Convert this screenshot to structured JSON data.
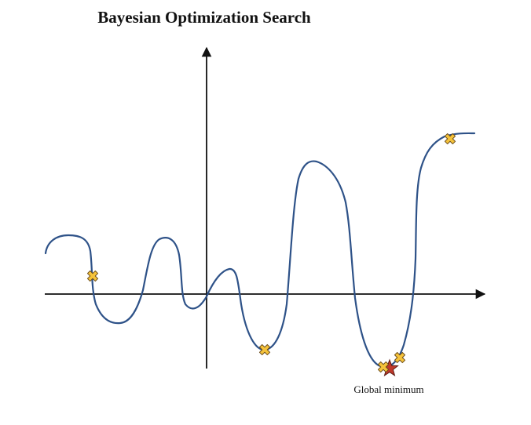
{
  "title": "Bayesian Optimization Search",
  "annotation": "Global minimum",
  "colors": {
    "curve": "#2e5288",
    "axis": "#111111",
    "sample_fill": "#f5c33b",
    "sample_stroke": "#6b4c1a",
    "minimum_fill": "#c0392b",
    "minimum_stroke": "#5a1a12"
  },
  "icons": {
    "sample": "x-cross-icon",
    "minimum": "star-icon"
  },
  "sample_count": 6
}
